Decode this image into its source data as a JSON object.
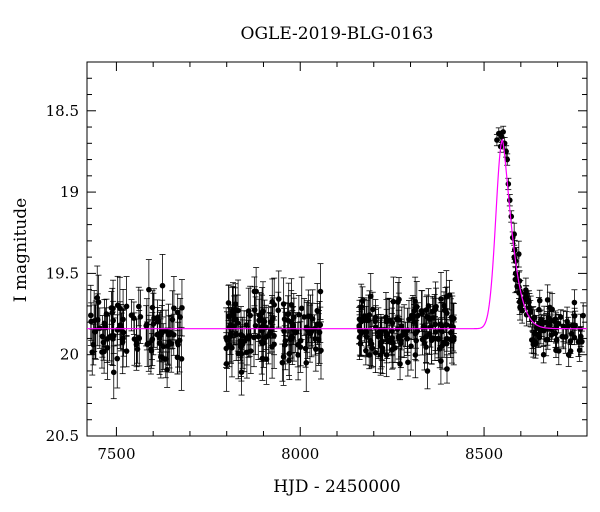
{
  "chart_data": {
    "type": "scatter",
    "title": "OGLE-2019-BLG-0163",
    "xlabel": "HJD - 2450000",
    "ylabel": "I magnitude",
    "xlim": [
      7420,
      8780
    ],
    "ylim": [
      20.5,
      18.2
    ],
    "y_inverted": true,
    "x_ticks": [
      7500,
      8000,
      8500
    ],
    "x_tick_labels": [
      "7500",
      "8000",
      "8500"
    ],
    "y_ticks": [
      18.5,
      19,
      19.5,
      20,
      20.5
    ],
    "y_tick_labels": [
      "18.5",
      "19",
      "19.5",
      "20",
      "20.5"
    ],
    "grid": false,
    "series": [
      {
        "kind": "data",
        "marker": "filled-circle",
        "color": "#000000",
        "errorbars": true,
        "segments": [
          {
            "x_range": [
              7430,
              7680
            ],
            "baseline": 19.84,
            "scatter": 0.11,
            "n": 95,
            "typical_error": 0.14
          },
          {
            "x_range": [
              7795,
              8060
            ],
            "baseline": 19.84,
            "scatter": 0.11,
            "n": 130,
            "typical_error": 0.14
          },
          {
            "x_range": [
              8160,
              8420
            ],
            "baseline": 19.84,
            "scatter": 0.1,
            "n": 150,
            "typical_error": 0.12
          }
        ],
        "peak_points": [
          [
            8535,
            18.68
          ],
          [
            8540,
            18.64
          ],
          [
            8545,
            18.72
          ],
          [
            8548,
            18.66
          ],
          [
            8552,
            18.63
          ],
          [
            8556,
            18.7
          ],
          [
            8560,
            18.75
          ],
          [
            8563,
            18.8
          ],
          [
            8566,
            18.95
          ],
          [
            8570,
            19.05
          ],
          [
            8574,
            19.15
          ],
          [
            8578,
            19.28
          ],
          [
            8582,
            19.4
          ],
          [
            8586,
            19.5
          ],
          [
            8590,
            19.58
          ],
          [
            8595,
            19.62
          ],
          [
            8600,
            19.66
          ],
          [
            8605,
            19.68
          ]
        ],
        "decay": {
          "x_range": [
            8580,
            8770
          ],
          "baseline": 19.84,
          "scatter": 0.08,
          "n": 90,
          "typical_error": 0.08
        }
      },
      {
        "kind": "model",
        "color": "#ff00ff",
        "baseline": 19.84,
        "peak_time": 8550,
        "peak_mag": 18.68,
        "rise_timescale": 25,
        "decay_timescale": 35
      }
    ]
  }
}
